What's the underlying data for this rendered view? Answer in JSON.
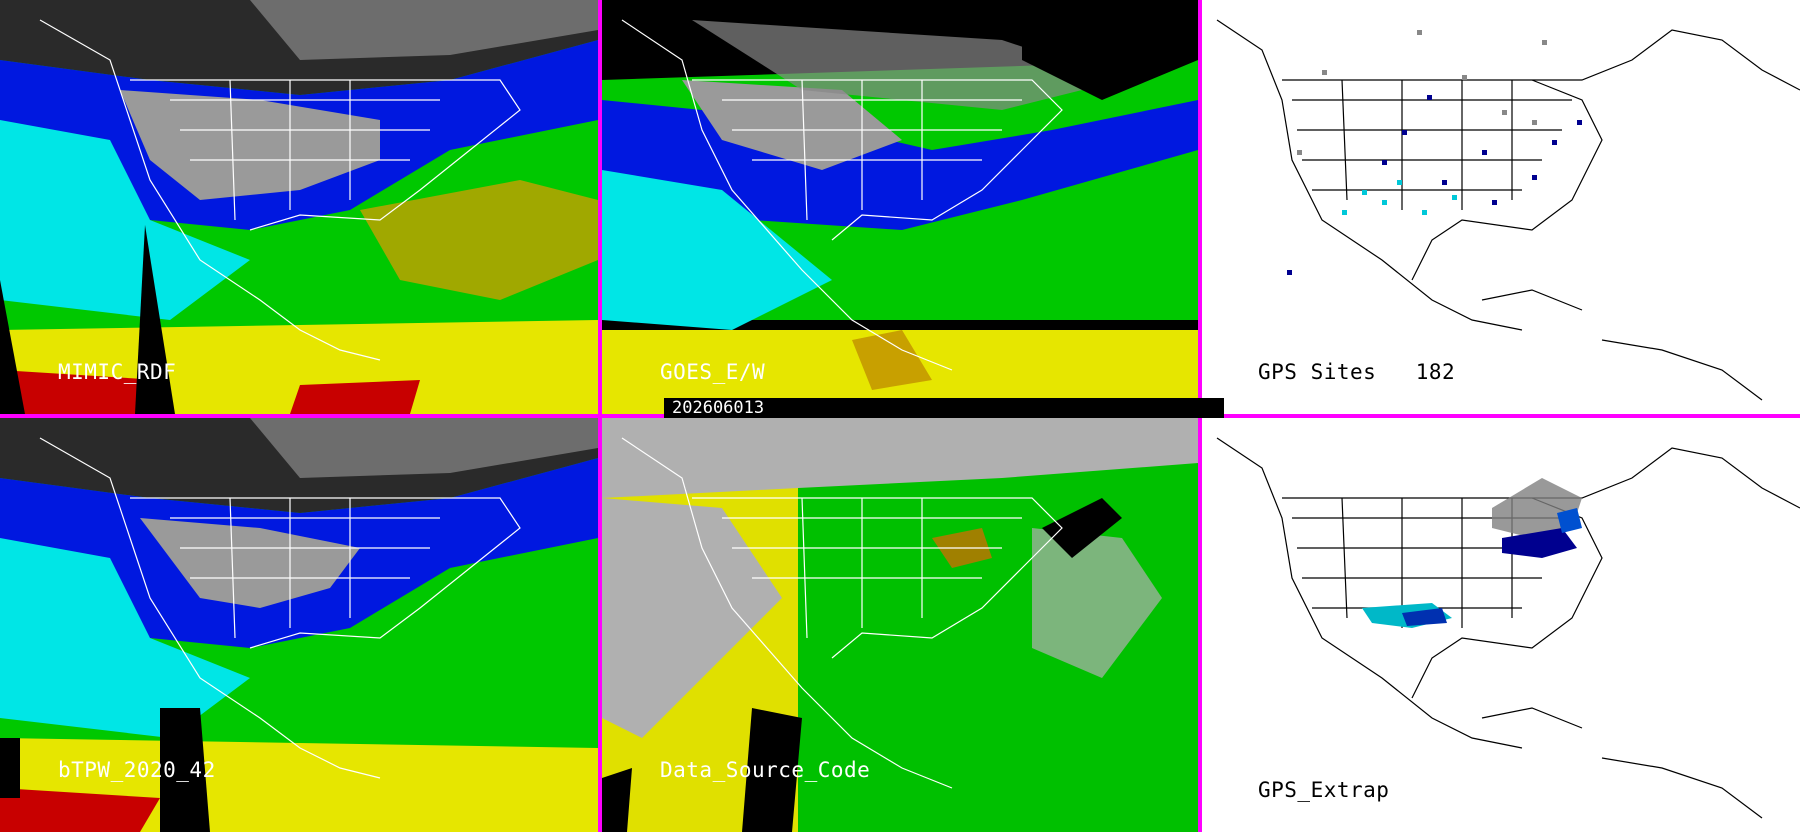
{
  "panels": [
    {
      "label": "MIMIC_RDF",
      "theme": "dark"
    },
    {
      "label": "GOES_E/W",
      "theme": "dark"
    },
    {
      "label": "GPS Sites   182",
      "theme": "light"
    },
    {
      "label": "bTPW_2020_42",
      "theme": "dark"
    },
    {
      "label": "Data_Source_Code",
      "theme": "dark"
    },
    {
      "label": "GPS_Extrap",
      "theme": "light"
    }
  ],
  "timestamp": "202606013",
  "colors": {
    "divider": "#ff00ff",
    "tpw_palette": [
      "#2a2a2a",
      "#9a9a9a",
      "#00008f",
      "#0018e0",
      "#00e6e6",
      "#00c800",
      "#c8a000",
      "#e6e600",
      "#c80000"
    ],
    "source_code_palette": [
      "#b0b0b0",
      "#e0e000",
      "#00c000",
      "#a08000",
      "#000000"
    ]
  }
}
